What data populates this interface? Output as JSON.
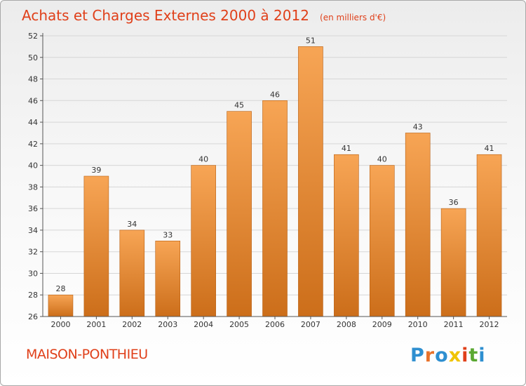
{
  "chart_data": {
    "type": "bar",
    "title": "Achats et Charges Externes 2000 à 2012",
    "subtitle": "(en milliers d'€)",
    "categories": [
      "2000",
      "2001",
      "2002",
      "2003",
      "2004",
      "2005",
      "2006",
      "2007",
      "2008",
      "2009",
      "2010",
      "2011",
      "2012"
    ],
    "values": [
      28,
      39,
      34,
      33,
      40,
      45,
      46,
      51,
      41,
      40,
      43,
      36,
      41
    ],
    "ylim": [
      26,
      52
    ],
    "yticks": [
      26,
      28,
      30,
      32,
      34,
      36,
      38,
      40,
      42,
      44,
      46,
      48,
      50,
      52
    ],
    "grid": true,
    "legend": "none",
    "bar_color_light": "#f7a555",
    "bar_color_dark": "#cc6e1a",
    "title_color": "#e0401a"
  },
  "footer": {
    "commune": "MAISON-PONTHIEU",
    "logo_letters": [
      "P",
      "r",
      "o",
      "x",
      "i",
      "t",
      "i"
    ],
    "logo_colors": [
      "#2e8fd0",
      "#e8722a",
      "#2e8fd0",
      "#f0c400",
      "#e0401a",
      "#5aa832",
      "#2e8fd0"
    ]
  }
}
